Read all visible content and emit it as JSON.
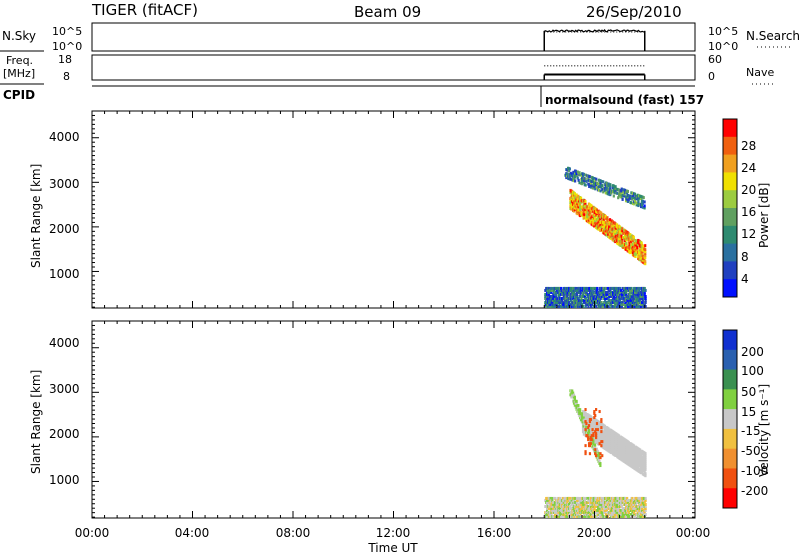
{
  "header": {
    "radar": "TIGER (fitACF)",
    "beam": "Beam 09",
    "date": "26/Sep/2010"
  },
  "strip_labels": {
    "nsky": "N.Sky",
    "nsearch": "N.Search",
    "freq_line1": "Freq.",
    "freq_line2": "[MHz]",
    "nave": "Nave",
    "cpid": "CPID",
    "nsky_ticks": [
      "10^5",
      "10^0"
    ],
    "nsearch_ticks": [
      "10^5",
      "10^0"
    ],
    "freq_ticks": [
      "18",
      "8"
    ],
    "nave_ticks": [
      "60",
      "0"
    ],
    "cpid_text": "normalsound (fast) 157"
  },
  "x_axis": {
    "label": "Time UT",
    "ticks": [
      "00:00",
      "04:00",
      "08:00",
      "12:00",
      "16:00",
      "20:00",
      "00:00"
    ]
  },
  "panels": {
    "power": {
      "ylabel": "Slant Range [km]",
      "yticks": [
        "4000",
        "3000",
        "2000",
        "1000"
      ],
      "colorbar_label": "Power [dB]",
      "colorbar_ticks": [
        "28",
        "24",
        "20",
        "16",
        "12",
        "8",
        "4"
      ]
    },
    "velocity": {
      "ylabel": "Slant Range [km]",
      "yticks": [
        "4000",
        "3000",
        "2000",
        "1000"
      ],
      "colorbar_label": "Velocity [m s⁻¹]",
      "colorbar_ticks": [
        "200",
        "100",
        "50",
        "15",
        "-15",
        "-50",
        "-100",
        "-200"
      ]
    }
  },
  "chart_data": [
    {
      "type": "heatmap",
      "title": "Power",
      "xlabel": "Time UT",
      "ylabel": "Slant Range [km]",
      "x_range_hours": [
        0,
        24
      ],
      "ylim": [
        180,
        4600
      ],
      "data_window_hours": [
        18.0,
        22.0
      ],
      "colorbar": {
        "label": "Power [dB]",
        "range": [
          0,
          32
        ],
        "ticks": [
          4,
          8,
          12,
          16,
          20,
          24,
          28
        ]
      },
      "colors": [
        "#0010ff",
        "#2040c0",
        "#2a70a0",
        "#2e8a70",
        "#60a060",
        "#9ccc40",
        "#f0e000",
        "#f0a020",
        "#f06010",
        "#ff0000"
      ],
      "features": [
        {
          "name": "near-range ground scatter",
          "t_start": 18.0,
          "t_end": 22.0,
          "r_min": 180,
          "r_max": 600,
          "level_db": 8
        },
        {
          "name": "upper descending echo",
          "t_start": 18.8,
          "t_end": 22.0,
          "r_start": 3200,
          "r_end": 2500,
          "level_db": 10
        },
        {
          "name": "main descending echo",
          "t_start": 19.0,
          "t_end": 22.0,
          "r_start": 2600,
          "r_end": 1350,
          "level_db": 24
        }
      ]
    },
    {
      "type": "heatmap",
      "title": "Velocity",
      "xlabel": "Time UT",
      "ylabel": "Slant Range [km]",
      "x_range_hours": [
        0,
        24
      ],
      "ylim": [
        180,
        4600
      ],
      "data_window_hours": [
        18.0,
        22.0
      ],
      "colorbar": {
        "label": "Velocity [m s⁻¹]",
        "range": [
          -250,
          250
        ],
        "ticks": [
          -200,
          -100,
          -50,
          -15,
          15,
          50,
          100,
          200
        ]
      },
      "colors": [
        "#ff0000",
        "#f05010",
        "#f09030",
        "#f0c040",
        "#c8c8c8",
        "#80d040",
        "#3a9050",
        "#2a60b0",
        "#1030d0"
      ],
      "features": [
        {
          "name": "ground scatter (near range)",
          "t_start": 18.0,
          "t_end": 22.0,
          "r_min": 180,
          "r_max": 600,
          "velocity": 0
        },
        {
          "name": "ground scatter band",
          "t_start": 19.5,
          "t_end": 22.0,
          "r_start": 2300,
          "r_end": 1350,
          "velocity": 0
        },
        {
          "name": "green descending streak",
          "t_start": 19.0,
          "t_end": 20.2,
          "r_start": 3000,
          "r_end": 1400,
          "velocity": 30
        },
        {
          "name": "red patches",
          "t_start": 19.6,
          "t_end": 20.3,
          "r_min": 1500,
          "r_max": 2600,
          "velocity": -150
        }
      ]
    },
    {
      "type": "line",
      "title": "N.Sky / N.Search",
      "x_range_hours": [
        0,
        24
      ],
      "data_window_hours": [
        18.0,
        22.0
      ],
      "nsky_log_level": 3.6,
      "nsearch_log_level": 3.4
    },
    {
      "type": "line",
      "title": "Freq / Nave",
      "x_range_hours": [
        0,
        24
      ],
      "data_window_hours": [
        18.0,
        22.0
      ],
      "freq_mhz": 10.2,
      "nave": 34
    }
  ]
}
